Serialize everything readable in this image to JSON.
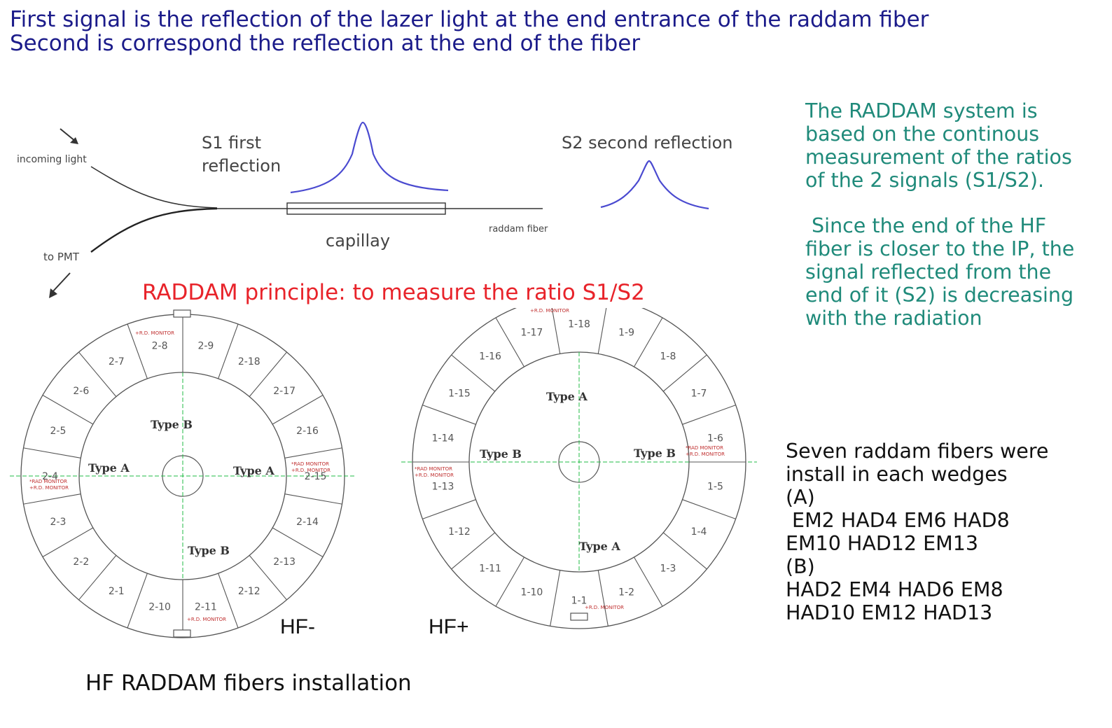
{
  "header": {
    "line1": "First signal is the reflection of the lazer light at the end entrance of the raddam fiber",
    "line2": "Second is correspond the reflection at the end of the fiber"
  },
  "schematic": {
    "incoming": "incoming light",
    "to_pmt": "to PMT",
    "s1": [
      "S1  first",
      "reflection"
    ],
    "s2": "S2 second reflection",
    "capillary": "capillay",
    "raddam_fiber": "raddam fiber"
  },
  "principle": "RADDAM principle: to measure the ratio S1/S2",
  "description": {
    "para1": [
      "The RADDAM system is",
      "based on the continous",
      "measurement of the ratios",
      "of the  2 signals (S1/S2)."
    ],
    "para2": [
      " Since the end of the HF",
      "fiber is closer to the IP, the",
      "signal reflected from the",
      "end of it (S2) is decreasing",
      "with the radiation"
    ]
  },
  "fibers_note": [
    "Seven raddam fibers were",
    "install in each wedges",
    "(A)",
    " EM2 HAD4 EM6 HAD8",
    "EM10 HAD12 EM13",
    "(B)",
    "HAD2 EM4 HAD6 EM8",
    "HAD10 EM12 HAD13"
  ],
  "hf_minus": {
    "label": "HF-",
    "segments": [
      "2-9",
      "2-18",
      "2-17",
      "2-16",
      "2-15",
      "2-14",
      "2-13",
      "2-12",
      "2-11",
      "2-10",
      "2-1",
      "2-2",
      "2-3",
      "2-4",
      "2-5",
      "2-6",
      "2-7",
      "2-8"
    ],
    "types": [
      "Type B",
      "Type A",
      "Type B",
      "Type A"
    ],
    "monitor_labels": [
      "+R.D. MONITOR",
      "*RAD MONITOR",
      "+R.D. MONITOR",
      "*RAD MONITOR",
      "+R.D. MONITOR",
      "+R.D. MONITOR"
    ]
  },
  "hf_plus": {
    "label": "HF+",
    "segments": [
      "1-18",
      "1-9",
      "1-8",
      "1-7",
      "1-6",
      "1-5",
      "1-4",
      "1-3",
      "1-2",
      "1-1",
      "1-10",
      "1-11",
      "1-12",
      "1-13",
      "1-14",
      "1-15",
      "1-16",
      "1-17"
    ],
    "types": [
      "Type A",
      "Type B",
      "Type A",
      "Type B"
    ],
    "monitor_labels": [
      "+R.D. MONITOR",
      "*RAD MONITOR",
      "+R.D. MONITOR",
      "*RAD MONITOR",
      "+R.D. MONITOR",
      "+R.D. MONITOR"
    ]
  },
  "caption": "HF RADDAM fibers installation",
  "colors": {
    "header": "#1b1b8a",
    "teal": "#1f8a7a",
    "red": "#e8232a",
    "peak": "#4a4ad0",
    "axis": "#22bb44"
  }
}
